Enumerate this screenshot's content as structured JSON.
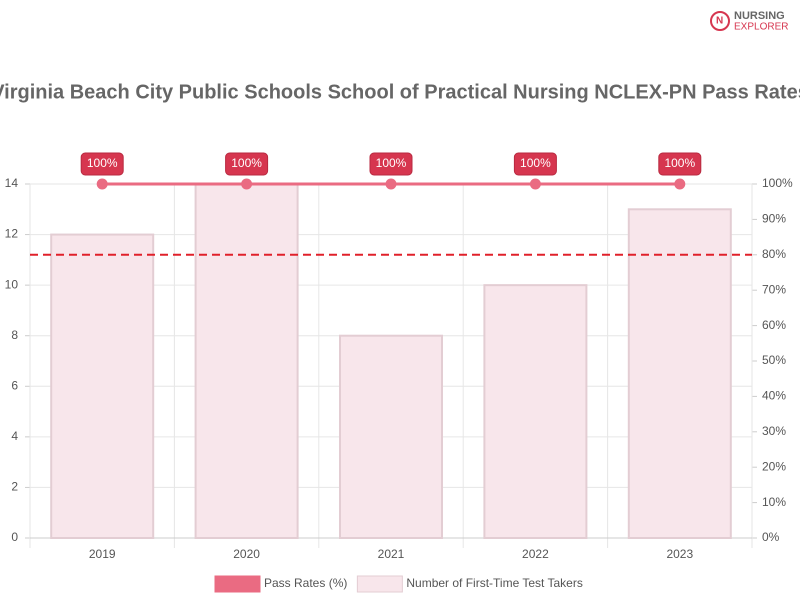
{
  "logo": [
    "NURSING",
    "EXPLORER"
  ],
  "chart_data": {
    "type": "bar-line",
    "title": "Virginia Beach City Public Schools School of Practical Nursing NCLEX-PN Pass Rates",
    "categories": [
      "2019",
      "2020",
      "2021",
      "2022",
      "2023"
    ],
    "series": [
      {
        "name": "Pass Rates (%)",
        "type": "line",
        "axis": "y2",
        "color": "#ea6b82",
        "values": [
          100,
          100,
          100,
          100,
          100
        ],
        "value_labels": [
          "100%",
          "100%",
          "100%",
          "100%",
          "100%"
        ]
      },
      {
        "name": "Number of First-Time Test Takers",
        "type": "bar",
        "color": "#f8e6eb",
        "values": [
          12,
          14,
          8,
          10,
          13
        ]
      }
    ],
    "reference_line": {
      "value": 80,
      "axis": "y2",
      "color": "#e0202a"
    },
    "ylim": [
      0,
      14
    ],
    "yticks": [
      0,
      2,
      4,
      6,
      8,
      10,
      12,
      14
    ],
    "y2lim": [
      0,
      100
    ],
    "y2ticks": [
      {
        "value": 0,
        "label": "0%"
      },
      {
        "value": 10,
        "label": "10%"
      },
      {
        "value": 20,
        "label": "20%"
      },
      {
        "value": 30,
        "label": "30%"
      },
      {
        "value": 40,
        "label": "40%"
      },
      {
        "value": 50,
        "label": "50%"
      },
      {
        "value": 60,
        "label": "60%"
      },
      {
        "value": 70,
        "label": "70%"
      },
      {
        "value": 80,
        "label": "80%"
      },
      {
        "value": 90,
        "label": "90%"
      },
      {
        "value": 100,
        "label": "100%"
      }
    ],
    "grid": true,
    "legend": "bottom"
  }
}
